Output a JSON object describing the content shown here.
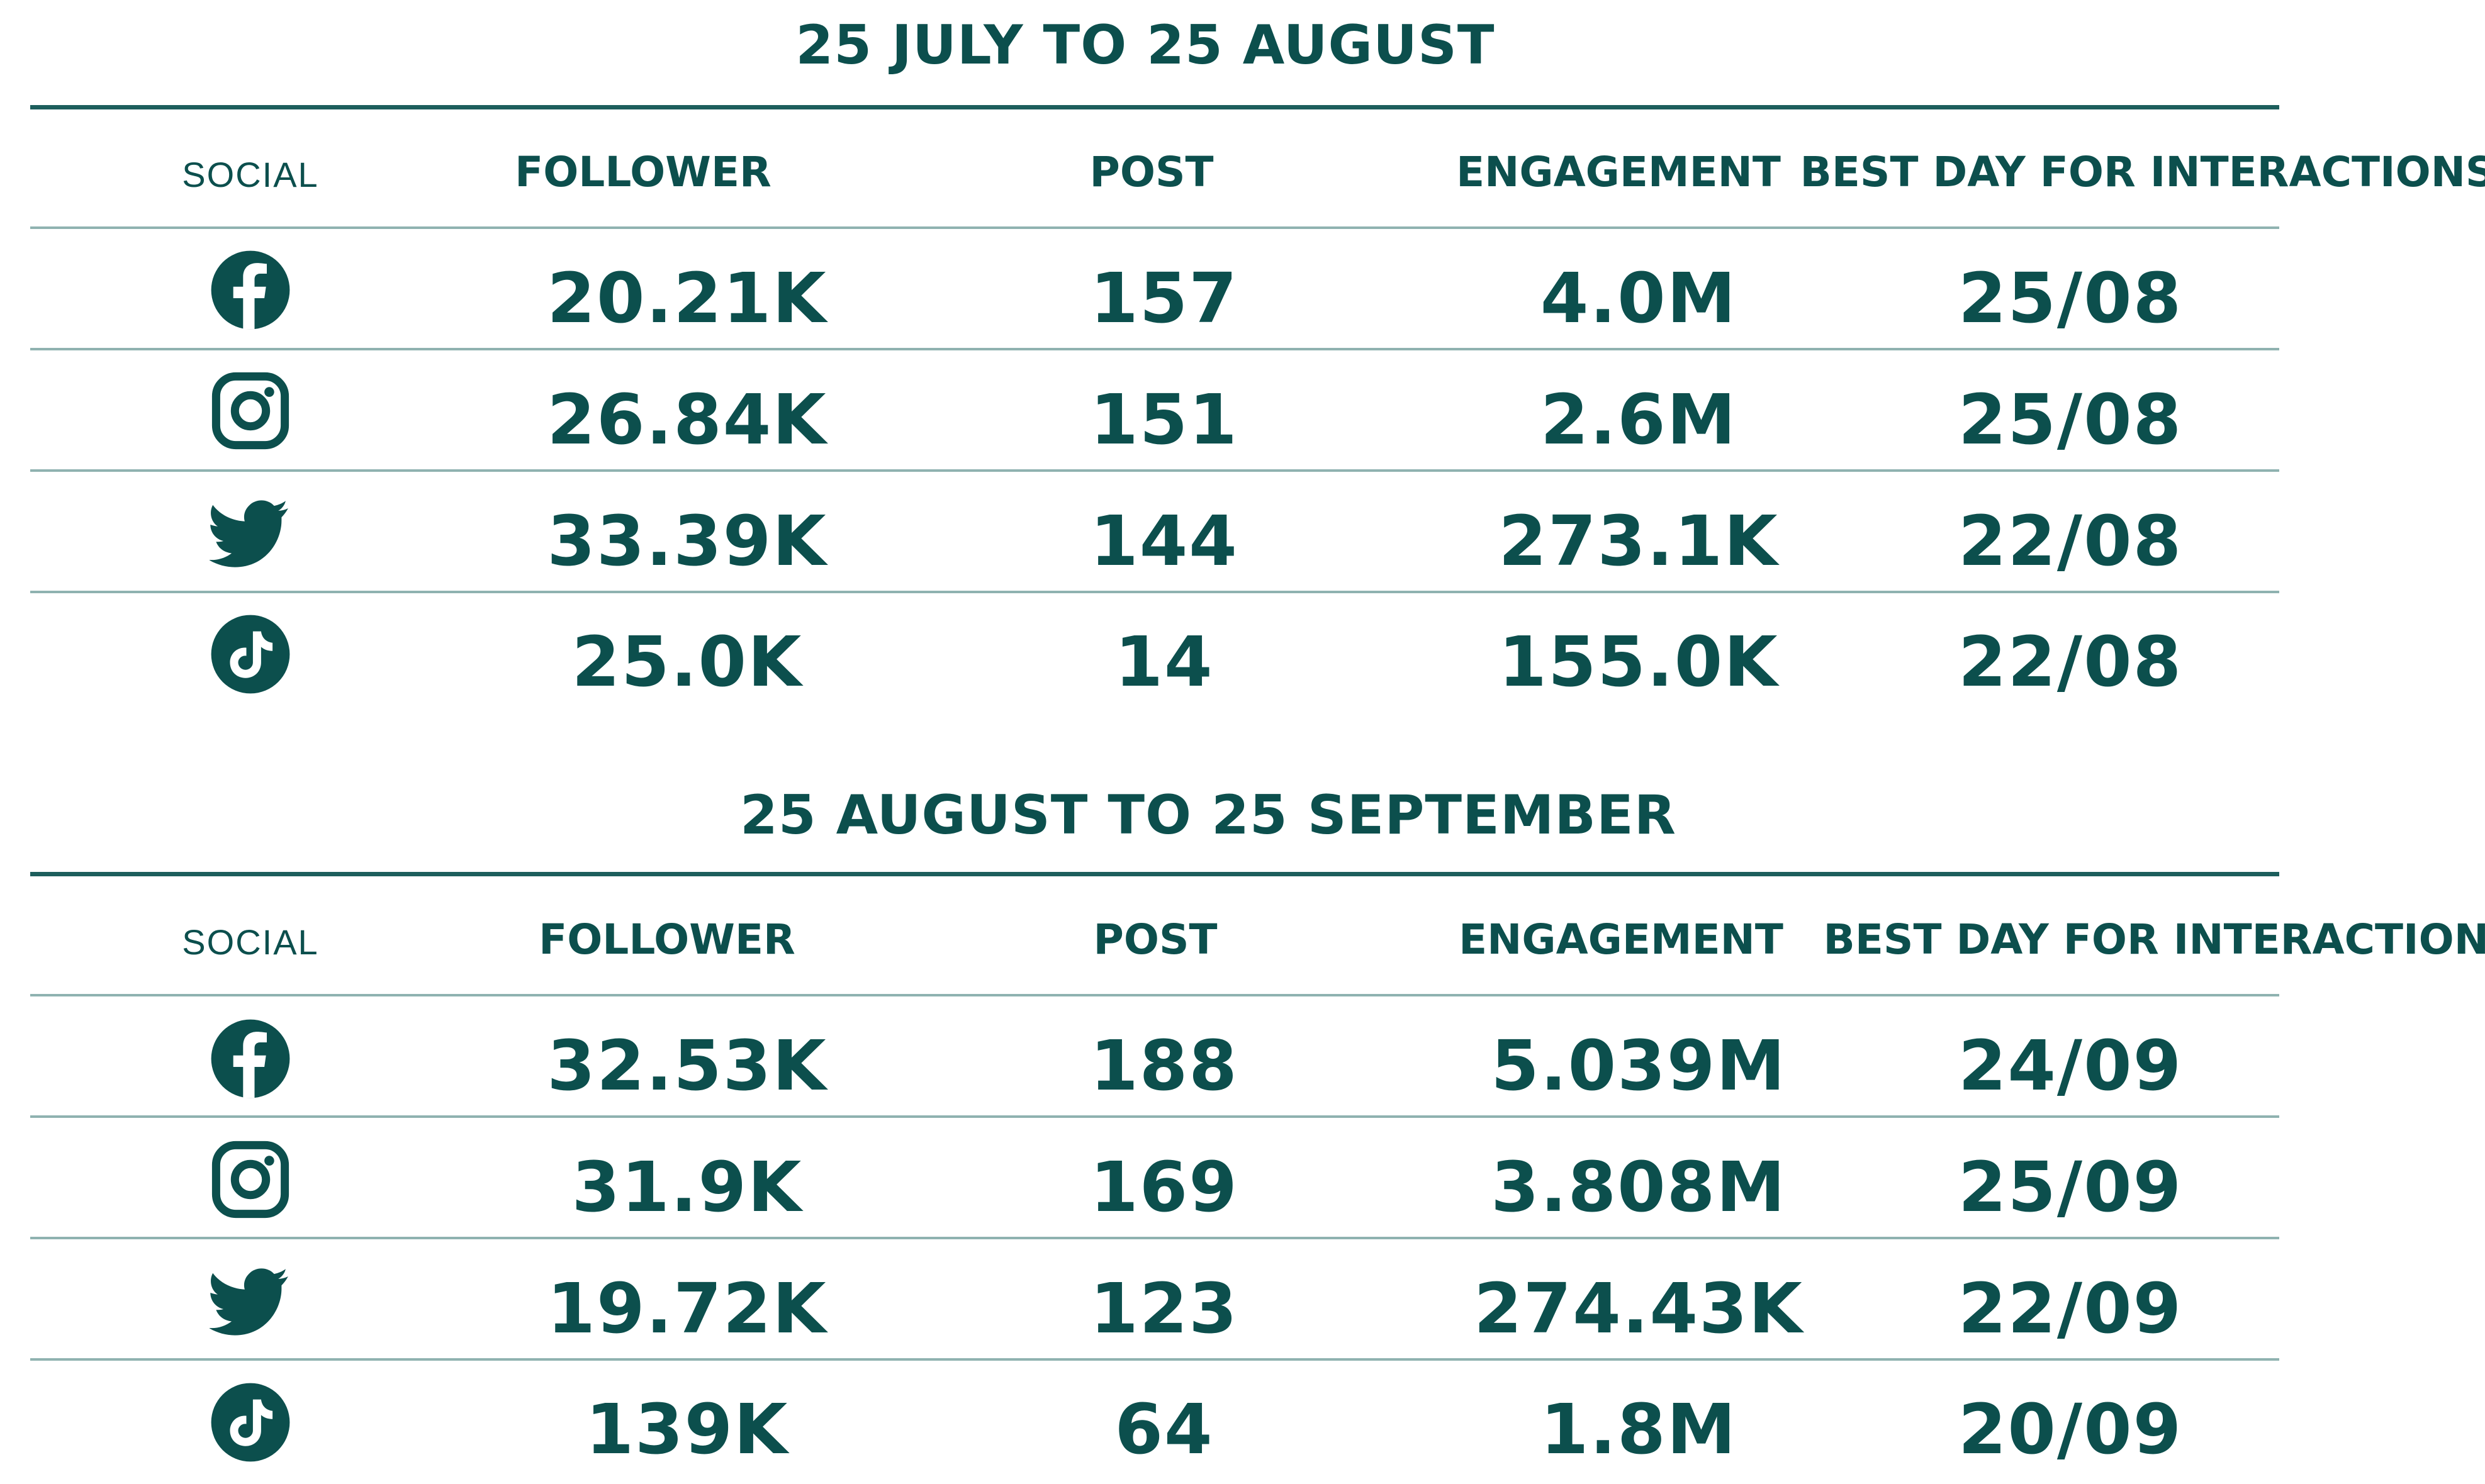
{
  "colors": {
    "text": "#0c4f4d",
    "rule": "#1d5e5c",
    "divider": "#8fb2b0"
  },
  "headers": {
    "social": "SOCIAL",
    "follower": "FOLLOWER",
    "post": "POST",
    "engagement": "ENGAGEMENT",
    "best_day": "BEST DAY FOR INTERACTIONS"
  },
  "tables": [
    {
      "title": "25 JULY TO 25 AUGUST",
      "rows": [
        {
          "icon": "facebook-icon",
          "follower": "20.21K",
          "post": "157",
          "engagement": "4.0M",
          "best_day": "25/08"
        },
        {
          "icon": "instagram-icon",
          "follower": "26.84K",
          "post": "151",
          "engagement": "2.6M",
          "best_day": "25/08"
        },
        {
          "icon": "twitter-icon",
          "follower": "33.39K",
          "post": "144",
          "engagement": "273.1K",
          "best_day": "22/08"
        },
        {
          "icon": "tiktok-icon",
          "follower": "25.0K",
          "post": "14",
          "engagement": "155.0K",
          "best_day": "22/08"
        }
      ]
    },
    {
      "title": "25 AUGUST TO 25 SEPTEMBER",
      "rows": [
        {
          "icon": "facebook-icon",
          "follower": "32.53K",
          "post": "188",
          "engagement": "5.039M",
          "best_day": "24/09"
        },
        {
          "icon": "instagram-icon",
          "follower": "31.9K",
          "post": "169",
          "engagement": "3.808M",
          "best_day": "25/09"
        },
        {
          "icon": "twitter-icon",
          "follower": "19.72K",
          "post": "123",
          "engagement": "274.43K",
          "best_day": "22/09"
        },
        {
          "icon": "tiktok-icon",
          "follower": "139K",
          "post": "64",
          "engagement": "1.8M",
          "best_day": "20/09"
        }
      ]
    }
  ]
}
